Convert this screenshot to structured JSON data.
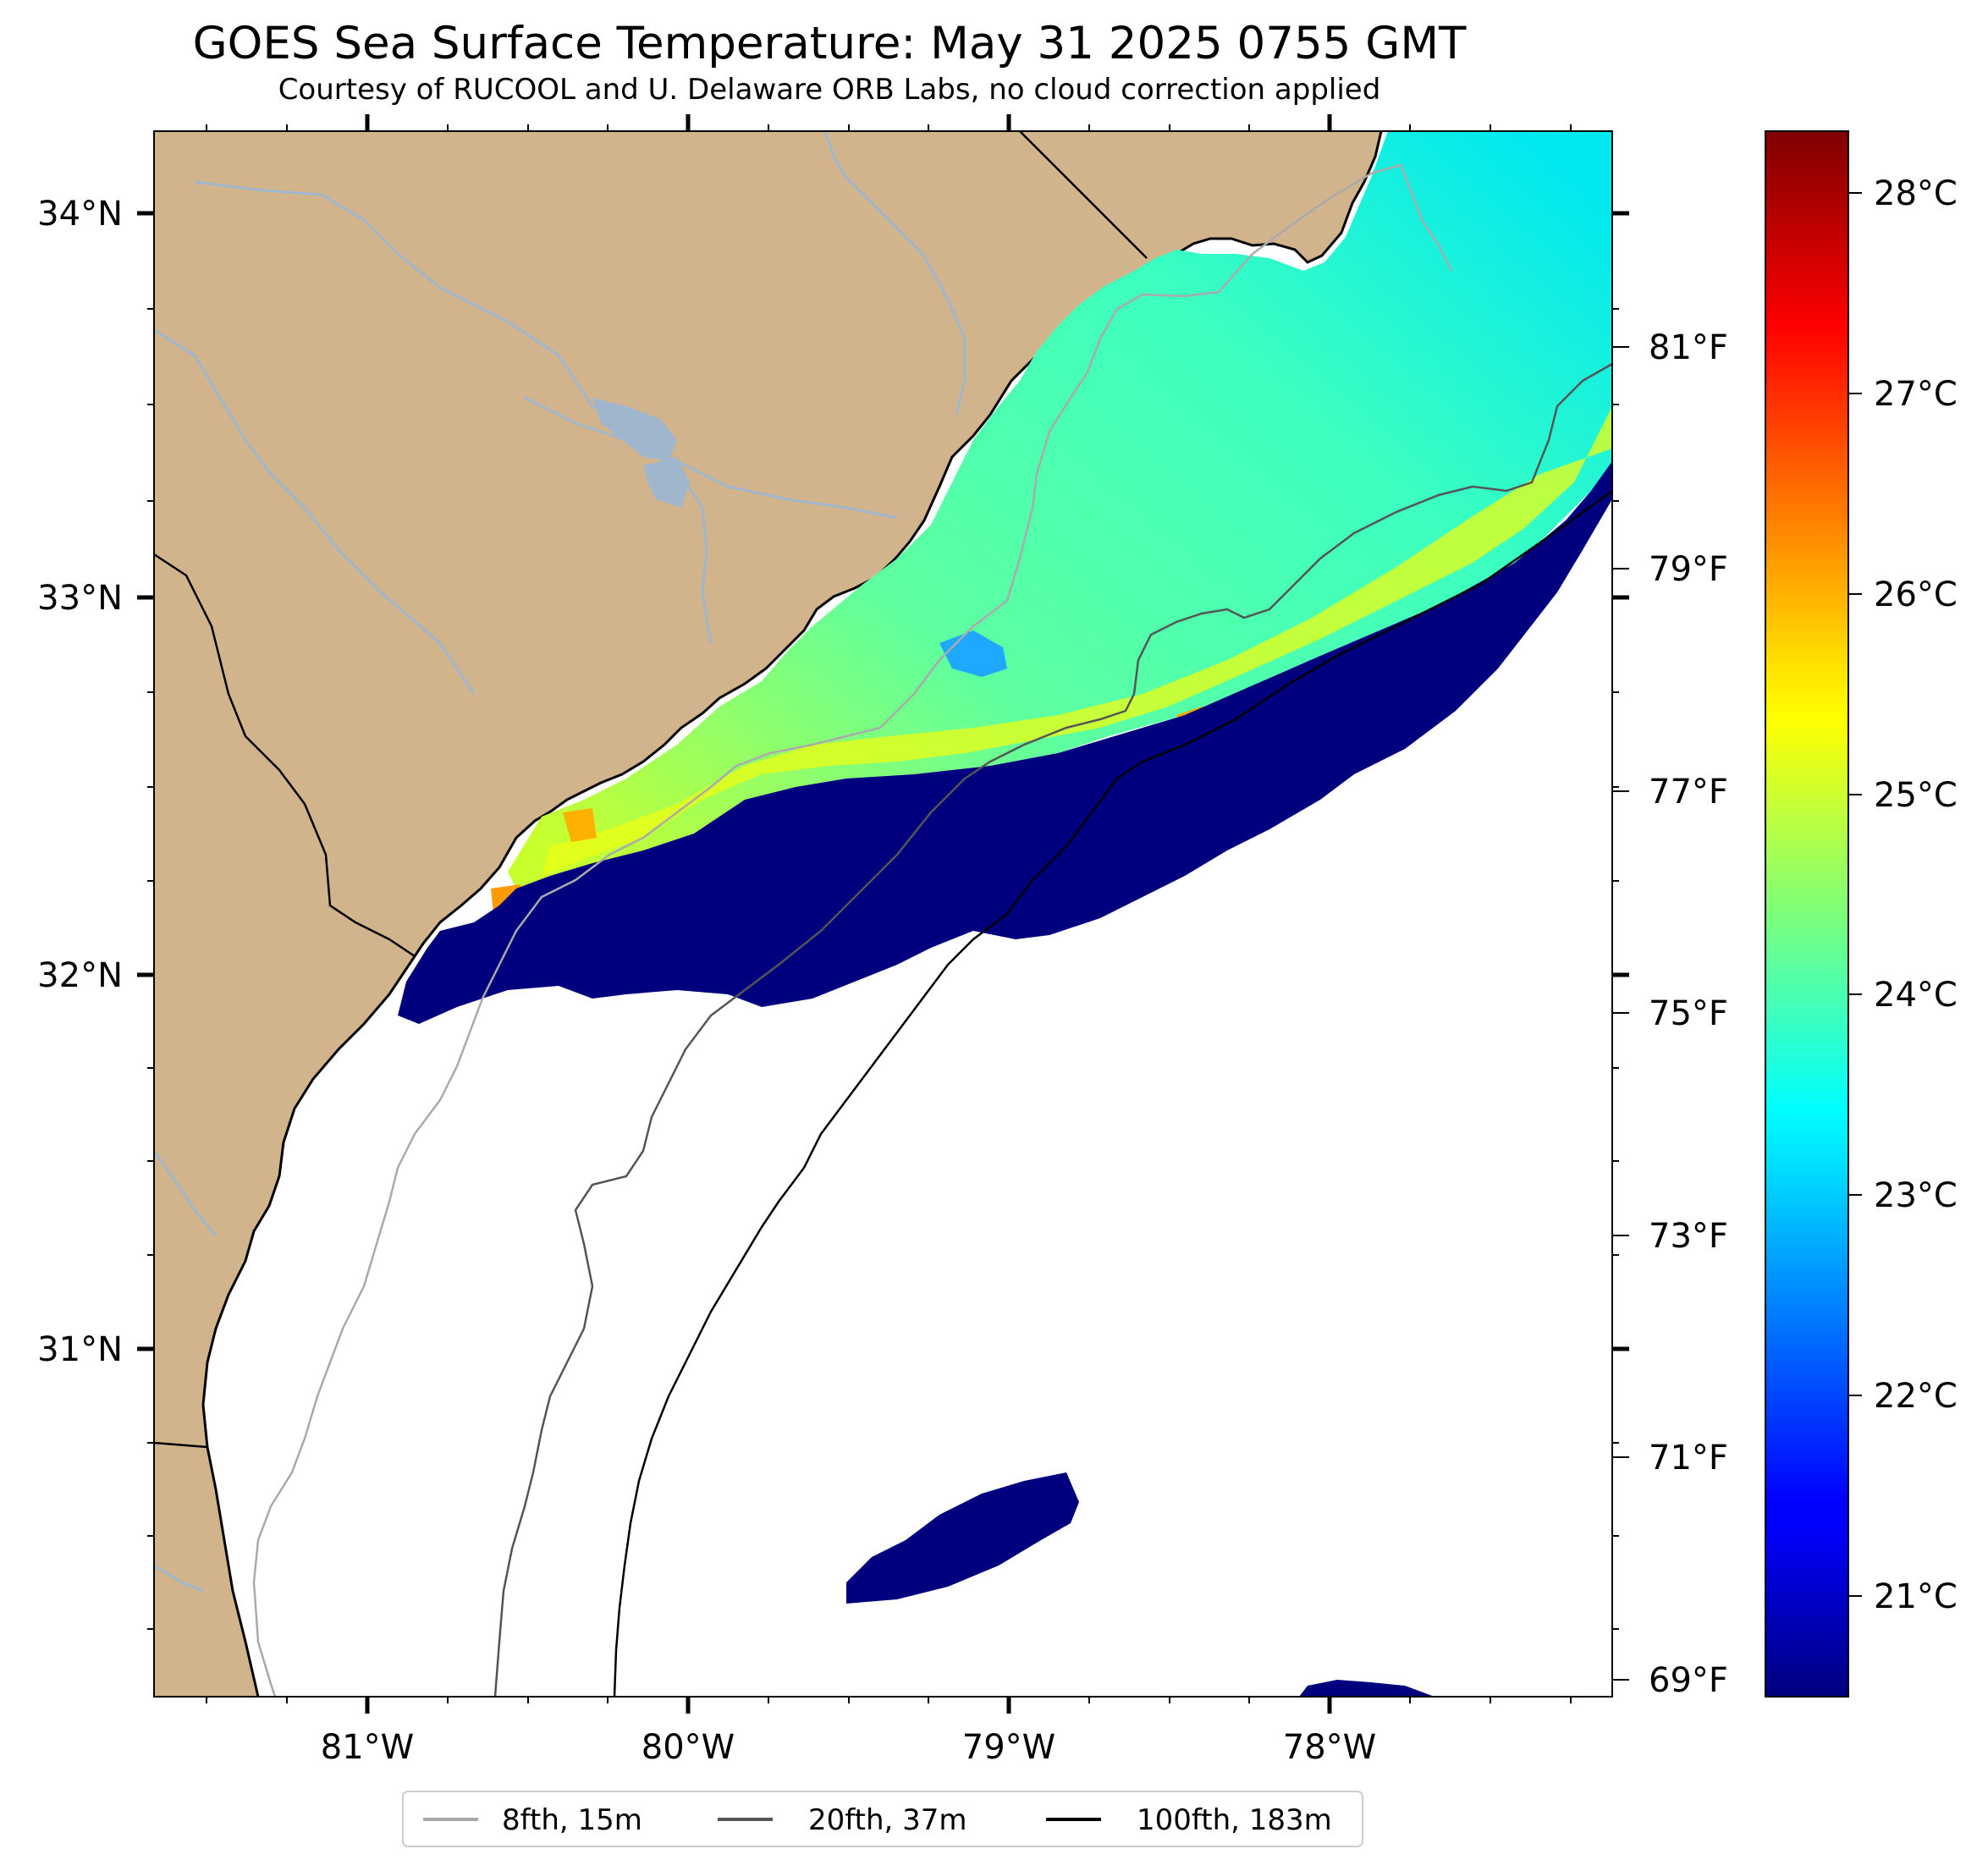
{
  "title": "GOES Sea Surface Temperature: May 31 2025 0755 GMT",
  "subtitle": "Courtesy of RUCOOL and U. Delaware ORB Labs, no cloud correction applied",
  "map": {
    "lon_range": [
      -81.67,
      -77.12
    ],
    "lat_range": [
      30.12,
      34.22
    ],
    "lat_ticks": [
      {
        "value": 34,
        "label": "34°N"
      },
      {
        "value": 33,
        "label": "33°N"
      },
      {
        "value": 32,
        "label": "32°N"
      },
      {
        "value": 31,
        "label": "31°N"
      }
    ],
    "lon_ticks": [
      {
        "value": -81,
        "label": "81°W"
      },
      {
        "value": -80,
        "label": "80°W"
      },
      {
        "value": -79,
        "label": "79°W"
      },
      {
        "value": -78,
        "label": "78°W"
      }
    ],
    "land_color": "#d2b48c",
    "river_color": "#9fb6cd",
    "cold_color": "#00007f"
  },
  "fahrenheit_axis": {
    "ticks": [
      {
        "value": 81,
        "label": "81°F"
      },
      {
        "value": 79,
        "label": "79°F"
      },
      {
        "value": 77,
        "label": "77°F"
      },
      {
        "value": 75,
        "label": "75°F"
      },
      {
        "value": 73,
        "label": "73°F"
      },
      {
        "value": 71,
        "label": "71°F"
      },
      {
        "value": 69,
        "label": "69°F"
      }
    ]
  },
  "colorbar": {
    "range_c": [
      20.5,
      28.3
    ],
    "colormap": "jet",
    "ticks": [
      {
        "value": 28,
        "label": "28°C"
      },
      {
        "value": 27,
        "label": "27°C"
      },
      {
        "value": 26,
        "label": "26°C"
      },
      {
        "value": 25,
        "label": "25°C"
      },
      {
        "value": 24,
        "label": "24°C"
      },
      {
        "value": 23,
        "label": "23°C"
      },
      {
        "value": 22,
        "label": "22°C"
      },
      {
        "value": 21,
        "label": "21°C"
      }
    ]
  },
  "legend": {
    "items": [
      {
        "label": "8fth, 15m",
        "color": "#aaaaaa"
      },
      {
        "label": "20fth, 37m",
        "color": "#555555"
      },
      {
        "label": "100fth, 183m",
        "color": "#000000"
      }
    ]
  }
}
